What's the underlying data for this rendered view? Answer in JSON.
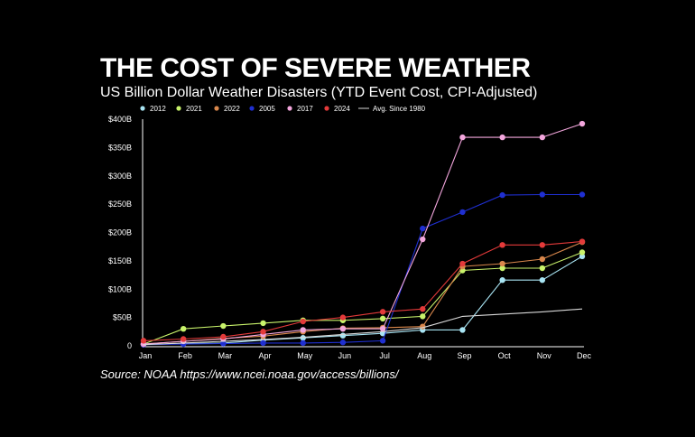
{
  "header": {
    "title": "THE COST OF SEVERE WEATHER",
    "subtitle": "US Billion Dollar Weather Disasters (YTD Event Cost, CPI-Adjusted)"
  },
  "footer": {
    "source": "Source: NOAA https://www.ncei.noaa.gov/access/billions/"
  },
  "chart_data": {
    "type": "line",
    "title": "THE COST OF SEVERE WEATHER",
    "subtitle": "US Billion Dollar Weather Disasters (YTD Event Cost, CPI-Adjusted)",
    "xlabel": "",
    "ylabel": "",
    "categories": [
      "Jan",
      "Feb",
      "Mar",
      "Apr",
      "May",
      "Jun",
      "Jul",
      "Aug",
      "Sep",
      "Oct",
      "Nov",
      "Dec"
    ],
    "ylim": [
      0,
      400
    ],
    "yticks": [
      0,
      50,
      100,
      150,
      200,
      250,
      300,
      350,
      400
    ],
    "ytick_labels": [
      "0",
      "$50B",
      "$100B",
      "$150B",
      "$200B",
      "$250B",
      "$300B",
      "$350B",
      "$400B"
    ],
    "grid": false,
    "legend_position": "top",
    "series": [
      {
        "name": "2012",
        "color": "#a8e4f3",
        "marker": true,
        "values": [
          2,
          4,
          5,
          10,
          14,
          18,
          22,
          28,
          28,
          116,
          116,
          158
        ]
      },
      {
        "name": "2021",
        "color": "#c9f36b",
        "marker": true,
        "values": [
          3,
          30,
          35,
          40,
          45,
          45,
          48,
          52,
          133,
          137,
          137,
          165
        ]
      },
      {
        "name": "2022",
        "color": "#d9874c",
        "marker": true,
        "values": [
          3,
          8,
          13,
          17,
          25,
          31,
          32,
          34,
          140,
          145,
          153,
          183
        ]
      },
      {
        "name": "2005",
        "color": "#1f2fd1",
        "marker": true,
        "values": [
          2,
          3,
          4,
          5,
          5,
          6,
          9,
          207,
          236,
          266,
          267,
          267
        ]
      },
      {
        "name": "2017",
        "color": "#f3a6dd",
        "marker": true,
        "values": [
          3,
          8,
          12,
          20,
          28,
          30,
          30,
          188,
          368,
          368,
          368,
          392
        ]
      },
      {
        "name": "2024",
        "color": "#e43a3a",
        "marker": true,
        "values": [
          9,
          12,
          16,
          25,
          43,
          50,
          60,
          65,
          145,
          178,
          178,
          184
        ]
      },
      {
        "name": "Avg. Since 1980",
        "color": "#d9d9d9",
        "marker": false,
        "values": [
          2,
          5,
          8,
          11,
          15,
          20,
          25,
          32,
          52,
          56,
          60,
          65
        ]
      }
    ]
  }
}
